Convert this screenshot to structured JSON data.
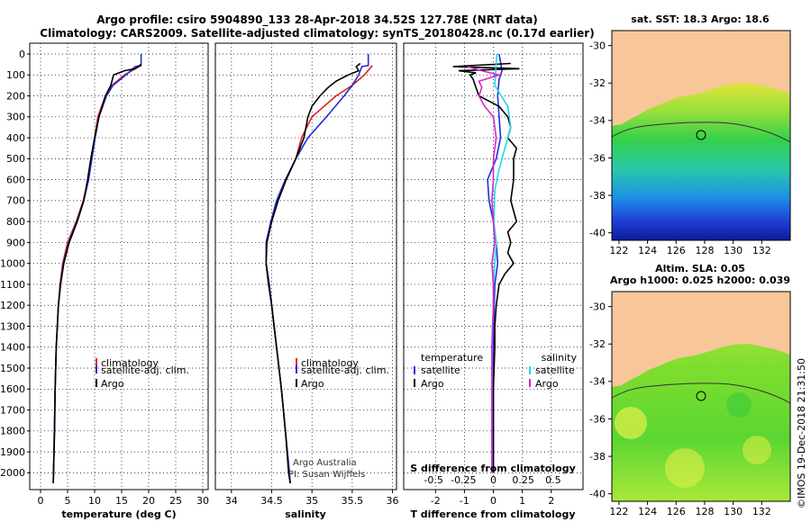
{
  "header": {
    "title_line1": "Argo profile: csiro 5904890_133 28-Apr-2018 34.52S 127.78E (NRT data)",
    "title_line2": "Climatology: CARS2009. Satellite-adjusted climatology: synTS_20180428.nc (0.17d earlier)"
  },
  "colors": {
    "climatology": "#e02020",
    "satellite": "#1f2fd8",
    "argo": "#000000",
    "sat_sal": "#22d8e8",
    "argo_sal": "#d825d0",
    "land": "#f7c79a"
  },
  "depth_ticks": [
    "0",
    "100",
    "200",
    "300",
    "400",
    "500",
    "600",
    "700",
    "800",
    "900",
    "1000",
    "1100",
    "1200",
    "1300",
    "1400",
    "1500",
    "1600",
    "1700",
    "1800",
    "1900",
    "2000"
  ],
  "panel_temp": {
    "xlabel": "temperature (deg C)",
    "xticks": [
      "0",
      "5",
      "10",
      "15",
      "20",
      "25",
      "30"
    ],
    "legend": [
      "climatology",
      "satellite-adj. clim.",
      "Argo"
    ]
  },
  "panel_sal": {
    "xlabel": "salinity",
    "xticks": [
      "34",
      "34.5",
      "35",
      "35.5",
      "36"
    ],
    "legend": [
      "climatology",
      "satellite-adj. clim.",
      "Argo"
    ],
    "credit1": "Argo Australia",
    "credit2": "PI: Susan Wijffels"
  },
  "panel_diff": {
    "xlabel": "T difference from climatology",
    "xticks": [
      "-2",
      "-1",
      "0",
      "1",
      "2"
    ],
    "s_label": "S difference from climatology",
    "s_ticks": [
      "-0.5",
      "-0.25",
      "0",
      "0.25",
      "0.5"
    ],
    "legend_t_title": "temperature",
    "legend_s_title": "salinity",
    "legend_t": [
      "satellite",
      "Argo"
    ],
    "legend_s": [
      "satellite",
      "Argo"
    ]
  },
  "maps": {
    "top_title": "sat. SST: 18.3 Argo: 18.6",
    "bottom_title1": "Altim. SLA: 0.05",
    "bottom_title2": "Argo h1000: 0.025 h2000: 0.039",
    "lat_ticks": [
      "-30",
      "-32",
      "-34",
      "-36",
      "-38",
      "-40"
    ],
    "lon_ticks": [
      "122",
      "124",
      "126",
      "128",
      "130",
      "132"
    ]
  },
  "stamp": "©IMOS 19-Dec-2018 21:31:50",
  "chart_data": [
    {
      "type": "line",
      "title": "",
      "xlabel": "temperature (deg C)",
      "ylabel": "",
      "xlim": [
        -2,
        31
      ],
      "ylim": [
        2050,
        0
      ],
      "series": [
        {
          "name": "climatology",
          "color": "#e02020",
          "depth": [
            55,
            100,
            150,
            200,
            300,
            400,
            500,
            600,
            700,
            800,
            900,
            1000,
            1100,
            1200,
            1300,
            1400,
            1500,
            1600,
            1800,
            2000,
            2050
          ],
          "values": [
            18.6,
            15.5,
            13.2,
            12.0,
            10.6,
            10.0,
            9.4,
            8.8,
            7.9,
            6.6,
            5.0,
            4.1,
            3.6,
            3.3,
            3.1,
            2.9,
            2.8,
            2.7,
            2.55,
            2.4,
            2.35
          ]
        },
        {
          "name": "satellite-adj. clim.",
          "color": "#1f2fd8",
          "depth": [
            0,
            55,
            60,
            100,
            150,
            200,
            300,
            400,
            500,
            600,
            700,
            800,
            900,
            1000,
            1100,
            1200,
            1300,
            1400,
            1500,
            1600,
            1800,
            2000,
            2050
          ],
          "values": [
            18.6,
            18.6,
            17.5,
            15.8,
            13.4,
            12.2,
            10.8,
            10.1,
            9.5,
            8.9,
            8.0,
            6.7,
            5.2,
            4.2,
            3.7,
            3.3,
            3.1,
            2.9,
            2.8,
            2.7,
            2.55,
            2.4,
            2.35
          ]
        },
        {
          "name": "Argo",
          "color": "#000000",
          "depth": [
            50,
            60,
            70,
            80,
            100,
            150,
            200,
            300,
            400,
            500,
            600,
            700,
            800,
            900,
            1000,
            1100,
            1200,
            1300,
            1400,
            1500,
            1600,
            1800,
            2000,
            2050
          ],
          "values": [
            18.6,
            18.0,
            17.5,
            15.5,
            13.5,
            13.0,
            12.0,
            10.8,
            10.0,
            9.3,
            8.7,
            8.0,
            6.8,
            5.3,
            4.3,
            3.7,
            3.3,
            3.1,
            2.9,
            2.8,
            2.7,
            2.6,
            2.4,
            2.35
          ]
        }
      ]
    },
    {
      "type": "line",
      "title": "",
      "xlabel": "salinity",
      "ylabel": "",
      "xlim": [
        33.8,
        36.05
      ],
      "ylim": [
        2050,
        0
      ],
      "series": [
        {
          "name": "climatology",
          "color": "#e02020",
          "depth": [
            55,
            100,
            150,
            200,
            300,
            400,
            500,
            600,
            700,
            800,
            900,
            1000,
            1100,
            1200,
            1300,
            1400,
            1500,
            1600,
            1800,
            2000,
            2050
          ],
          "values": [
            35.75,
            35.65,
            35.5,
            35.3,
            35.0,
            34.87,
            34.8,
            34.68,
            34.57,
            34.5,
            34.43,
            34.43,
            34.47,
            34.5,
            34.53,
            34.56,
            34.59,
            34.62,
            34.67,
            34.72,
            34.73
          ]
        },
        {
          "name": "satellite-adj. clim.",
          "color": "#1f2fd8",
          "depth": [
            0,
            55,
            60,
            100,
            150,
            200,
            300,
            400,
            500,
            600,
            700,
            800,
            900,
            1000,
            1100,
            1200,
            1300,
            1400,
            1500,
            1600,
            1800,
            2000,
            2050
          ],
          "values": [
            35.7,
            35.7,
            35.62,
            35.58,
            35.5,
            35.4,
            35.18,
            34.95,
            34.8,
            34.67,
            34.56,
            34.49,
            34.43,
            34.43,
            34.47,
            34.5,
            34.53,
            34.56,
            34.59,
            34.62,
            34.67,
            34.72,
            34.73
          ]
        },
        {
          "name": "Argo",
          "color": "#000000",
          "depth": [
            45,
            60,
            80,
            100,
            130,
            160,
            200,
            250,
            300,
            400,
            500,
            600,
            700,
            800,
            900,
            1000,
            1100,
            1200,
            1400,
            1600,
            1800,
            2000,
            2050
          ],
          "values": [
            35.6,
            35.55,
            35.58,
            35.45,
            35.3,
            35.2,
            35.1,
            35.0,
            34.95,
            34.9,
            34.8,
            34.68,
            34.58,
            34.5,
            34.44,
            34.43,
            34.46,
            34.5,
            34.56,
            34.62,
            34.67,
            34.71,
            34.73
          ]
        }
      ]
    },
    {
      "type": "line",
      "title": "",
      "xlabel": "T difference from climatology",
      "ylabel": "",
      "xlim": [
        -3.1,
        3.1
      ],
      "ylim": [
        2050,
        0
      ],
      "series": [
        {
          "name": "temperature satellite",
          "color": "#1f2fd8",
          "depth": [
            0,
            80,
            120,
            200,
            300,
            400,
            500,
            600,
            700,
            800,
            900,
            1000,
            1100,
            1200,
            1400,
            1600,
            1800,
            2000
          ],
          "values": [
            0.2,
            0.3,
            0.2,
            0.15,
            0.2,
            0.25,
            0.1,
            -0.2,
            -0.15,
            0.0,
            0.1,
            0.15,
            0.05,
            0.03,
            0.0,
            0.0,
            0.0,
            0.0
          ]
        },
        {
          "name": "temperature Argo",
          "color": "#000000",
          "depth": [
            45,
            60,
            70,
            80,
            90,
            100,
            120,
            160,
            200,
            250,
            300,
            350,
            400,
            450,
            500,
            600,
            700,
            800,
            850,
            900,
            950,
            1000,
            1050,
            1100,
            1200,
            1300,
            1400,
            1600,
            1800,
            2000
          ],
          "values": [
            0.6,
            -1.4,
            0.9,
            -1.2,
            -0.6,
            -0.8,
            -0.7,
            -0.6,
            -0.5,
            0.2,
            0.5,
            0.6,
            0.5,
            0.8,
            0.7,
            0.7,
            0.6,
            0.8,
            0.5,
            0.6,
            0.5,
            0.7,
            0.4,
            0.2,
            0.1,
            0.05,
            0.05,
            0.0,
            0.0,
            0.0
          ]
        },
        {
          "name": "salinity satellite",
          "color": "#22d8e8",
          "depth": [
            0,
            80,
            150,
            250,
            350,
            450,
            550,
            650,
            800,
            900,
            1000,
            1100,
            1200,
            1400,
            1600,
            1800,
            2000
          ],
          "values": [
            0.12,
            0.08,
            0.05,
            0.5,
            0.6,
            0.4,
            0.2,
            0.05,
            0.02,
            0.1,
            0.05,
            0.0,
            0.0,
            -0.05,
            -0.05,
            -0.05,
            -0.05
          ]
        },
        {
          "name": "salinity Argo",
          "color": "#d825d0",
          "depth": [
            60,
            80,
            100,
            130,
            160,
            200,
            250,
            300,
            400,
            500,
            600,
            700,
            800,
            900,
            1000,
            1100,
            1200,
            1400,
            1600,
            1800,
            2000
          ],
          "values": [
            -0.9,
            -0.4,
            0.2,
            -0.5,
            -0.4,
            -0.5,
            -0.3,
            0.0,
            0.1,
            0.0,
            0.0,
            -0.05,
            0.0,
            0.05,
            -0.05,
            0.0,
            0.0,
            -0.05,
            -0.05,
            -0.05,
            -0.05
          ]
        }
      ]
    }
  ]
}
